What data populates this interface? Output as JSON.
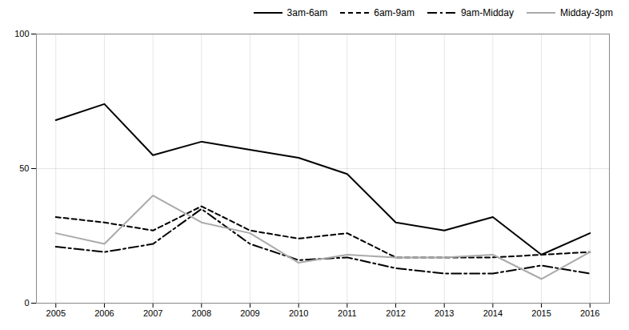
{
  "chart_data": {
    "type": "line",
    "x": [
      2005,
      2006,
      2007,
      2008,
      2009,
      2010,
      2011,
      2012,
      2013,
      2014,
      2015,
      2016
    ],
    "series": [
      {
        "name": "3am-6am",
        "color": "#000000",
        "line_style": "solid",
        "values": [
          68,
          74,
          55,
          60,
          57,
          54,
          48,
          30,
          27,
          32,
          18,
          26
        ]
      },
      {
        "name": "6am-9am",
        "color": "#000000",
        "line_style": "dashed",
        "values": [
          32,
          30,
          27,
          36,
          27,
          24,
          26,
          17,
          17,
          17,
          18,
          19
        ]
      },
      {
        "name": "9am-Midday",
        "color": "#000000",
        "line_style": "dashdot",
        "values": [
          21,
          19,
          22,
          35,
          22,
          16,
          17,
          13,
          11,
          11,
          14,
          11
        ]
      },
      {
        "name": "Midday-3pm",
        "color": "#aaaaaa",
        "line_style": "solid",
        "values": [
          26,
          22,
          40,
          30,
          26,
          15,
          18,
          17,
          17,
          18,
          9,
          19
        ]
      }
    ],
    "xlim": [
      2004.6,
      2016.4
    ],
    "xticks": [
      2005,
      2006,
      2007,
      2008,
      2009,
      2010,
      2011,
      2012,
      2013,
      2014,
      2015,
      2016
    ],
    "ylim": [
      0,
      100
    ],
    "yticks": [
      0,
      50,
      100
    ],
    "grid": true,
    "legend": "upper right"
  }
}
